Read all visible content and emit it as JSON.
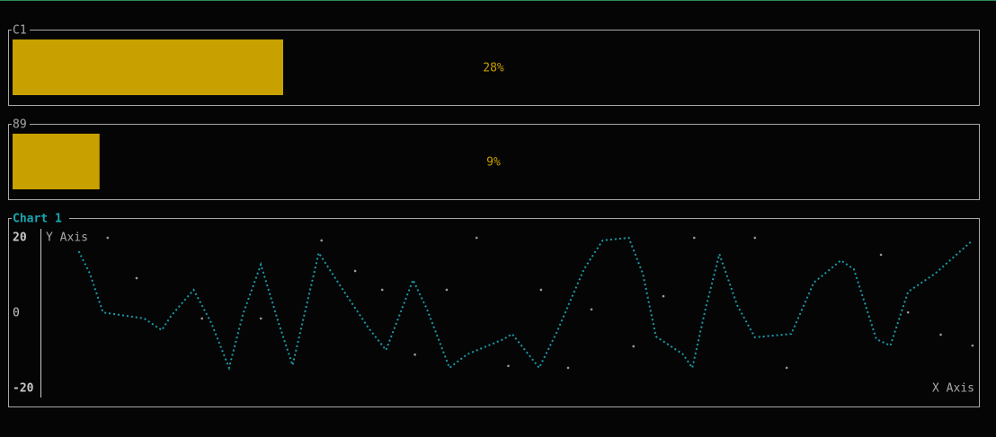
{
  "gauges": [
    {
      "title": "C1",
      "value": 28,
      "label": "28%",
      "color": "#c8a000"
    },
    {
      "title": "89",
      "value": 9,
      "label": "9%",
      "color": "#c8a000"
    }
  ],
  "chart_data": {
    "type": "line",
    "title": "Chart 1",
    "x_label": "X Axis",
    "y_label": "Y Axis",
    "xlim": [
      0,
      100
    ],
    "ylim": [
      -20,
      20
    ],
    "yticks": [
      -20,
      0,
      20
    ],
    "series": [
      {
        "color": "#1a9aa8",
        "x": [
          4.0,
          5.2,
          6.6,
          11.0,
          12.9,
          13.9,
          16.3,
          18.2,
          20.1,
          21.6,
          23.5,
          25.4,
          26.9,
          29.7,
          32.1,
          35.0,
          36.9,
          39.8,
          41.3,
          43.7,
          45.6,
          49.5,
          50.4,
          53.3,
          55.2,
          58.1,
          60.1,
          62.9,
          64.4,
          65.8,
          68.7,
          69.7,
          71.1,
          72.6,
          74.5,
          76.4,
          80.3,
          82.7,
          85.6,
          87.0,
          89.4,
          90.9,
          92.8,
          95.7,
          99.7
        ],
        "values": [
          16.4,
          10.5,
          0.2,
          -1.4,
          -4.5,
          -0.7,
          6.2,
          -2.6,
          -14.5,
          -0.2,
          12.9,
          -2.6,
          -13.8,
          16,
          6.9,
          -3.8,
          -9.8,
          8.8,
          1,
          -14.5,
          -10.9,
          -6.9,
          -5.5,
          -14.5,
          -5,
          11.7,
          19.3,
          20,
          10.5,
          -6.2,
          -10.9,
          -14.5,
          1,
          15.7,
          2.1,
          -6.4,
          -5.5,
          8.1,
          14,
          11.7,
          -6.9,
          -8.6,
          5.7,
          10.5,
          19.3
        ]
      },
      {
        "type": "scatter",
        "color": "#9a9a9a",
        "x": [
          7.1,
          10.2,
          17.2,
          23.5,
          30.0,
          33.6,
          36.5,
          40.0,
          43.4,
          46.6,
          50.0,
          53.5,
          56.4,
          58.9,
          63.4,
          66.6,
          69.9,
          76.4,
          79.8,
          89.9,
          92.8,
          96.3,
          99.7
        ],
        "values": [
          20,
          9.3,
          -1.4,
          -1.4,
          19.3,
          11.2,
          6.2,
          -11,
          6.2,
          20,
          -14,
          6.2,
          -14.5,
          1,
          -8.8,
          4.5,
          20,
          20,
          -14.5,
          15.5,
          0.2,
          -5.7,
          -8.6
        ]
      }
    ]
  }
}
